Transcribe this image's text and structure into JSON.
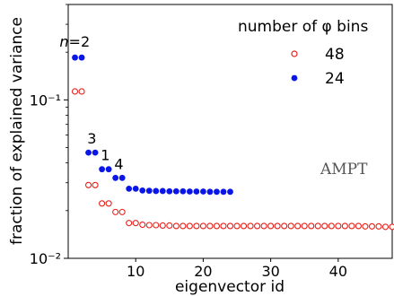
{
  "chart_data": {
    "type": "scatter",
    "title": "",
    "xlabel": "eigenvector id",
    "ylabel": "fraction of explained variance",
    "yscale": "log",
    "xlim": [
      0,
      48
    ],
    "ylim": [
      0.01,
      0.4
    ],
    "x_ticks": [
      10,
      20,
      30,
      40
    ],
    "x_tick_labels": [
      "10",
      "20",
      "30",
      "40"
    ],
    "y_ticks": [
      0.1,
      0.01
    ],
    "y_tick_labels": [
      "10⁻¹",
      "10⁻²"
    ],
    "legend": {
      "title": "number of φ bins",
      "placement": "top-right",
      "entries": [
        "48",
        "24"
      ]
    },
    "series": [
      {
        "name": "48",
        "marker": "open-circle",
        "color": "#e8201a",
        "x": [
          1,
          2,
          3,
          4,
          5,
          6,
          7,
          8,
          9,
          10,
          11,
          12,
          13,
          14,
          15,
          16,
          17,
          18,
          19,
          20,
          21,
          22,
          23,
          24,
          25,
          26,
          27,
          28,
          29,
          30,
          31,
          32,
          33,
          34,
          35,
          36,
          37,
          38,
          39,
          40,
          41,
          42,
          43,
          44,
          45,
          46,
          47,
          48
        ],
        "y": [
          0.113,
          0.113,
          0.029,
          0.029,
          0.0222,
          0.0222,
          0.0196,
          0.0196,
          0.0167,
          0.0167,
          0.0163,
          0.0162,
          0.0162,
          0.0161,
          0.0161,
          0.016,
          0.016,
          0.016,
          0.016,
          0.016,
          0.016,
          0.016,
          0.016,
          0.016,
          0.016,
          0.016,
          0.016,
          0.016,
          0.016,
          0.016,
          0.016,
          0.016,
          0.016,
          0.016,
          0.016,
          0.016,
          0.016,
          0.016,
          0.016,
          0.016,
          0.016,
          0.016,
          0.016,
          0.0159,
          0.0159,
          0.0159,
          0.0158,
          0.0158
        ]
      },
      {
        "name": "24",
        "marker": "filled-circle",
        "color": "#0a16e8",
        "x": [
          1,
          2,
          3,
          4,
          5,
          6,
          7,
          8,
          9,
          10,
          11,
          12,
          13,
          14,
          15,
          16,
          17,
          18,
          19,
          20,
          21,
          22,
          23,
          24
        ],
        "y": [
          0.185,
          0.185,
          0.0465,
          0.0465,
          0.0365,
          0.0365,
          0.0322,
          0.0322,
          0.0275,
          0.0275,
          0.0268,
          0.0267,
          0.0266,
          0.0266,
          0.0265,
          0.0265,
          0.0265,
          0.0264,
          0.0264,
          0.0264,
          0.0263,
          0.0263,
          0.0263,
          0.0263
        ]
      }
    ],
    "annotations": [
      {
        "text": "n=2",
        "x": 1.5,
        "y": 0.185
      },
      {
        "text": "3",
        "x": 3.5,
        "y": 0.0465
      },
      {
        "text": "1",
        "x": 5.5,
        "y": 0.0365
      },
      {
        "text": "4",
        "x": 7.5,
        "y": 0.0322
      }
    ],
    "watermark_label": "AMPT"
  }
}
